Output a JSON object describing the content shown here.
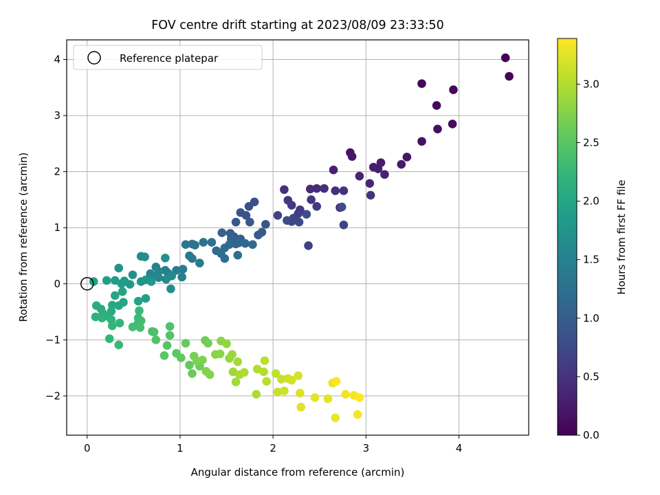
{
  "chart_data": {
    "type": "scatter",
    "title": "FOV centre drift starting at 2023/08/09 23:33:50",
    "xlabel": "Angular distance from reference (arcmin)",
    "ylabel": "Rotation from reference (arcmin)",
    "xlim": [
      -0.22,
      4.75
    ],
    "ylim": [
      -2.7,
      4.35
    ],
    "xticks": [
      0,
      1,
      2,
      3,
      4
    ],
    "yticks": [
      -2,
      -1,
      0,
      1,
      2,
      3,
      4
    ],
    "grid": true,
    "legend": {
      "position": "top-left",
      "entries": [
        {
          "label": "Reference platepar",
          "marker": "open-circle"
        }
      ]
    },
    "reference_point": {
      "x": 0,
      "y": 0
    },
    "colorbar": {
      "label": "Hours from first FF file",
      "colormap": "viridis",
      "range": [
        0,
        3.39
      ],
      "ticks": [
        "0.0",
        "0.5",
        "1.0",
        "1.5",
        "2.0",
        "2.5",
        "3.0"
      ],
      "tick_values": [
        0,
        0.5,
        1.0,
        1.5,
        2.0,
        2.5,
        3.0
      ]
    },
    "series": [
      {
        "columns": [
          "x",
          "y",
          "hours"
        ],
        "points": [
          [
            4.5,
            4.03,
            0.02
          ],
          [
            4.54,
            3.7,
            0.04
          ],
          [
            3.6,
            3.57,
            0.06
          ],
          [
            3.94,
            3.46,
            0.08
          ],
          [
            3.76,
            3.18,
            0.09
          ],
          [
            3.93,
            2.85,
            0.11
          ],
          [
            3.77,
            2.76,
            0.13
          ],
          [
            3.6,
            2.54,
            0.15
          ],
          [
            2.83,
            2.34,
            0.17
          ],
          [
            3.44,
            2.26,
            0.19
          ],
          [
            2.85,
            2.27,
            0.21
          ],
          [
            3.38,
            2.13,
            0.23
          ],
          [
            3.16,
            2.16,
            0.24
          ],
          [
            3.08,
            2.08,
            0.26
          ],
          [
            3.13,
            2.05,
            0.28
          ],
          [
            2.65,
            2.03,
            0.3
          ],
          [
            3.2,
            1.95,
            0.32
          ],
          [
            2.93,
            1.92,
            0.34
          ],
          [
            3.04,
            1.79,
            0.36
          ],
          [
            2.72,
            1.36,
            0.38
          ],
          [
            2.4,
            1.69,
            0.4
          ],
          [
            2.47,
            1.7,
            0.42
          ],
          [
            2.55,
            1.7,
            0.43
          ],
          [
            2.12,
            1.68,
            0.45
          ],
          [
            2.67,
            1.66,
            0.47
          ],
          [
            2.76,
            1.66,
            0.49
          ],
          [
            3.05,
            1.58,
            0.51
          ],
          [
            2.41,
            1.5,
            0.53
          ],
          [
            2.16,
            1.49,
            0.55
          ],
          [
            2.2,
            1.4,
            0.57
          ],
          [
            2.47,
            1.38,
            0.58
          ],
          [
            2.29,
            1.32,
            0.6
          ],
          [
            2.27,
            1.25,
            0.62
          ],
          [
            2.38,
            0.68,
            0.64
          ],
          [
            2.05,
            1.22,
            0.66
          ],
          [
            2.76,
            1.05,
            0.68
          ],
          [
            2.22,
            1.17,
            0.7
          ],
          [
            2.2,
            1.11,
            0.72
          ],
          [
            2.28,
            1.1,
            0.74
          ],
          [
            2.15,
            1.13,
            0.76
          ],
          [
            2.36,
            1.24,
            0.78
          ],
          [
            2.74,
            1.37,
            0.79
          ],
          [
            1.8,
            1.46,
            0.81
          ],
          [
            1.74,
            1.38,
            0.83
          ],
          [
            1.65,
            1.27,
            0.85
          ],
          [
            1.71,
            1.22,
            0.87
          ],
          [
            1.92,
            1.06,
            0.89
          ],
          [
            1.6,
            1.1,
            0.91
          ],
          [
            1.75,
            1.1,
            0.93
          ],
          [
            1.88,
            0.92,
            0.95
          ],
          [
            1.84,
            0.87,
            0.97
          ],
          [
            1.58,
            0.84,
            0.98
          ],
          [
            1.65,
            0.8,
            1.0
          ],
          [
            1.54,
            0.9,
            1.02
          ],
          [
            1.45,
            0.91,
            1.04
          ],
          [
            1.55,
            0.8,
            1.06
          ],
          [
            1.6,
            0.71,
            1.08
          ],
          [
            1.63,
            0.73,
            1.1
          ],
          [
            1.7,
            0.72,
            1.12
          ],
          [
            1.78,
            0.7,
            1.14
          ],
          [
            1.53,
            0.7,
            1.15
          ],
          [
            1.48,
            0.64,
            1.17
          ],
          [
            1.39,
            0.59,
            1.19
          ],
          [
            1.44,
            0.54,
            1.21
          ],
          [
            1.48,
            0.45,
            1.23
          ],
          [
            1.62,
            0.51,
            1.25
          ],
          [
            1.34,
            0.74,
            1.27
          ],
          [
            1.25,
            0.74,
            1.29
          ],
          [
            1.13,
            0.71,
            1.3
          ],
          [
            1.16,
            0.69,
            1.32
          ],
          [
            1.06,
            0.7,
            1.34
          ],
          [
            1.1,
            0.5,
            1.36
          ],
          [
            1.13,
            0.45,
            1.38
          ],
          [
            1.21,
            0.37,
            1.4
          ],
          [
            1.03,
            0.26,
            1.42
          ],
          [
            0.96,
            0.24,
            1.44
          ],
          [
            1.02,
            0.12,
            1.46
          ],
          [
            0.84,
            0.24,
            1.48
          ],
          [
            0.87,
            0.19,
            1.49
          ],
          [
            0.74,
            0.3,
            1.51
          ],
          [
            0.77,
            0.22,
            1.53
          ],
          [
            0.68,
            0.18,
            1.55
          ],
          [
            0.71,
            0.13,
            1.57
          ],
          [
            0.77,
            0.11,
            1.59
          ],
          [
            0.85,
            0.08,
            1.61
          ],
          [
            0.91,
            0.14,
            1.63
          ],
          [
            0.9,
            -0.09,
            1.64
          ],
          [
            0.58,
            0.49,
            1.66
          ],
          [
            0.62,
            0.48,
            1.68
          ],
          [
            0.84,
            0.46,
            1.7
          ],
          [
            0.34,
            0.28,
            1.72
          ],
          [
            0.49,
            0.16,
            1.74
          ],
          [
            0.58,
            0.04,
            1.76
          ],
          [
            0.63,
            0.07,
            1.78
          ],
          [
            0.69,
            0.04,
            1.8
          ],
          [
            0.46,
            -0.01,
            1.82
          ],
          [
            0.4,
            0.05,
            1.83
          ],
          [
            0.37,
            0.0,
            1.85
          ],
          [
            0.3,
            0.06,
            1.87
          ],
          [
            0.21,
            0.06,
            1.89
          ],
          [
            0.07,
            0.04,
            1.91
          ],
          [
            0.63,
            -0.26,
            1.93
          ],
          [
            0.55,
            -0.31,
            1.95
          ],
          [
            0.38,
            -0.14,
            1.97
          ],
          [
            0.3,
            -0.21,
            1.99
          ],
          [
            0.39,
            -0.33,
            2.0
          ],
          [
            0.34,
            -0.39,
            2.02
          ],
          [
            0.27,
            -0.38,
            2.04
          ],
          [
            0.26,
            -0.49,
            2.06
          ],
          [
            0.1,
            -0.39,
            2.08
          ],
          [
            0.15,
            -0.45,
            2.1
          ],
          [
            0.17,
            -0.53,
            2.12
          ],
          [
            0.22,
            -0.58,
            2.13
          ],
          [
            0.09,
            -0.59,
            2.15
          ],
          [
            0.16,
            -0.61,
            2.17
          ],
          [
            0.26,
            -0.64,
            2.19
          ],
          [
            0.27,
            -0.75,
            2.21
          ],
          [
            0.35,
            -0.7,
            2.23
          ],
          [
            0.24,
            -0.98,
            2.25
          ],
          [
            0.34,
            -1.09,
            2.27
          ],
          [
            0.56,
            -0.48,
            2.29
          ],
          [
            0.55,
            -0.61,
            2.3
          ],
          [
            0.55,
            -0.7,
            2.32
          ],
          [
            0.58,
            -0.66,
            2.34
          ],
          [
            0.49,
            -0.77,
            2.36
          ],
          [
            0.57,
            -0.78,
            2.38
          ],
          [
            0.7,
            -0.85,
            2.4
          ],
          [
            0.72,
            -0.86,
            2.42
          ],
          [
            0.89,
            -0.76,
            2.44
          ],
          [
            0.89,
            -0.92,
            2.46
          ],
          [
            0.74,
            -1.0,
            2.47
          ],
          [
            0.86,
            -1.1,
            2.49
          ],
          [
            0.83,
            -1.28,
            2.51
          ],
          [
            0.96,
            -1.24,
            2.53
          ],
          [
            1.01,
            -1.32,
            2.55
          ],
          [
            1.1,
            -1.45,
            2.57
          ],
          [
            1.06,
            -1.06,
            2.59
          ],
          [
            1.13,
            -1.6,
            2.61
          ],
          [
            1.21,
            -1.47,
            2.62
          ],
          [
            1.27,
            -1.01,
            2.64
          ],
          [
            1.3,
            -1.06,
            2.66
          ],
          [
            1.15,
            -1.29,
            2.68
          ],
          [
            1.18,
            -1.38,
            2.7
          ],
          [
            1.24,
            -1.36,
            2.72
          ],
          [
            1.28,
            -1.56,
            2.74
          ],
          [
            1.32,
            -1.62,
            2.76
          ],
          [
            1.38,
            -1.26,
            2.78
          ],
          [
            1.43,
            -1.25,
            2.79
          ],
          [
            1.44,
            -1.02,
            2.81
          ],
          [
            1.5,
            -1.07,
            2.83
          ],
          [
            1.53,
            -1.33,
            2.85
          ],
          [
            1.56,
            -1.26,
            2.87
          ],
          [
            1.57,
            -1.57,
            2.89
          ],
          [
            1.6,
            -1.75,
            2.91
          ],
          [
            1.62,
            -1.39,
            2.93
          ],
          [
            1.64,
            -1.62,
            2.95
          ],
          [
            1.69,
            -1.58,
            2.96
          ],
          [
            1.82,
            -1.97,
            2.98
          ],
          [
            1.83,
            -1.52,
            3.0
          ],
          [
            1.9,
            -1.57,
            3.02
          ],
          [
            1.93,
            -1.74,
            3.04
          ],
          [
            1.91,
            -1.37,
            3.06
          ],
          [
            2.03,
            -1.6,
            3.08
          ],
          [
            2.05,
            -1.93,
            3.1
          ],
          [
            2.09,
            -1.7,
            3.11
          ],
          [
            2.12,
            -1.91,
            3.13
          ],
          [
            2.16,
            -1.69,
            3.15
          ],
          [
            2.2,
            -1.72,
            3.17
          ],
          [
            2.27,
            -1.64,
            3.19
          ],
          [
            2.29,
            -1.95,
            3.21
          ],
          [
            2.3,
            -2.2,
            3.23
          ],
          [
            2.45,
            -2.03,
            3.25
          ],
          [
            2.59,
            -2.05,
            3.26
          ],
          [
            2.64,
            -1.77,
            3.28
          ],
          [
            2.67,
            -2.39,
            3.3
          ],
          [
            2.78,
            -1.97,
            3.32
          ],
          [
            2.87,
            -1.99,
            3.34
          ],
          [
            2.91,
            -2.33,
            3.36
          ],
          [
            2.68,
            -1.74,
            3.37
          ],
          [
            2.93,
            -2.03,
            3.39
          ]
        ]
      }
    ]
  }
}
